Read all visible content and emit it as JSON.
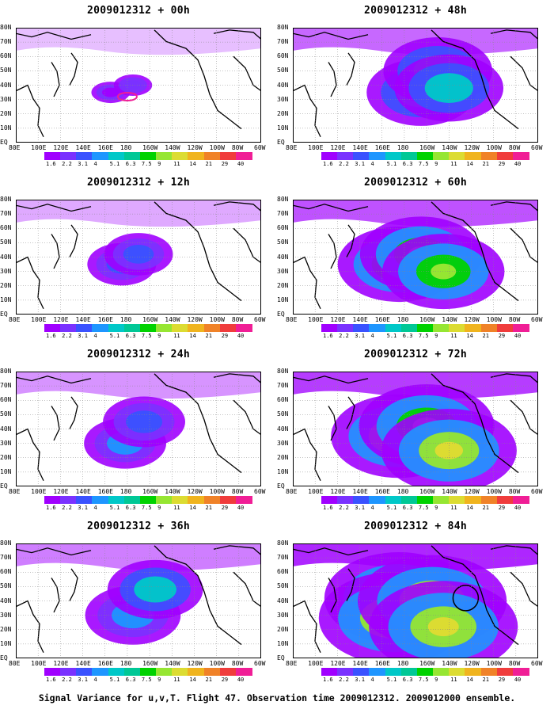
{
  "caption": "Signal Variance for u,v,T. Flight 47. Observation time 2009012312. 2009012000 ensemble.",
  "lat_labels": [
    "80N",
    "70N",
    "60N",
    "50N",
    "40N",
    "30N",
    "20N",
    "10N",
    "EQ"
  ],
  "lon_labels": [
    "80E",
    "100E",
    "120E",
    "140E",
    "160E",
    "180",
    "160W",
    "140W",
    "120W",
    "100W",
    "80W",
    "60W"
  ],
  "colorbar": {
    "levels": [
      "1.6",
      "2.2",
      "3.1",
      "4",
      "5.1",
      "6.3",
      "7.5",
      "9",
      "11",
      "14",
      "21",
      "29",
      "40"
    ],
    "colors": [
      "#a000ff",
      "#7a32ff",
      "#3a52ff",
      "#1e96ff",
      "#00c8c8",
      "#00c896",
      "#00d200",
      "#96e632",
      "#dcdc32",
      "#f0b41e",
      "#f08228",
      "#f03c3c",
      "#f01e96"
    ]
  },
  "chart_data": [
    {
      "type": "heatmap",
      "title": "2009012312 + 00h",
      "forecast_hour": 0,
      "variable": "signal variance",
      "xlim": [
        "80E",
        "60W"
      ],
      "ylim": [
        "EQ",
        "80N"
      ],
      "blobs": [
        {
          "lon": "165E",
          "lat": "35N",
          "level": "1.6-2.2",
          "extent": "small"
        },
        {
          "lon": "175W",
          "lat": "40N",
          "level": "2.2",
          "extent": "small"
        },
        {
          "lon": "180",
          "lat": "32N",
          "level": "29",
          "note": "contour"
        }
      ]
    },
    {
      "type": "heatmap",
      "title": "2009012312 + 12h",
      "forecast_hour": 12,
      "variable": "signal variance",
      "xlim": [
        "80E",
        "60W"
      ],
      "ylim": [
        "EQ",
        "80N"
      ],
      "blobs": [
        {
          "lon": "175E",
          "lat": "35N",
          "level": "3.1-5.1"
        },
        {
          "lon": "170W",
          "lat": "42N",
          "level": "3.1"
        }
      ]
    },
    {
      "type": "heatmap",
      "title": "2009012312 + 24h",
      "forecast_hour": 24,
      "variable": "signal variance",
      "xlim": [
        "80E",
        "60W"
      ],
      "ylim": [
        "EQ",
        "80N"
      ],
      "blobs": [
        {
          "lon": "178E",
          "lat": "30N",
          "level": "4-5.1"
        },
        {
          "lon": "165W",
          "lat": "45N",
          "level": "3.1"
        }
      ]
    },
    {
      "type": "heatmap",
      "title": "2009012312 + 36h",
      "forecast_hour": 36,
      "variable": "signal variance",
      "xlim": [
        "80E",
        "60W"
      ],
      "ylim": [
        "EQ",
        "80N"
      ],
      "blobs": [
        {
          "lon": "175W",
          "lat": "30N",
          "level": "4-5.1"
        },
        {
          "lon": "155W",
          "lat": "48N",
          "level": "5.1"
        }
      ]
    },
    {
      "type": "heatmap",
      "title": "2009012312 + 48h",
      "forecast_hour": 48,
      "variable": "signal variance",
      "xlim": [
        "80E",
        "60W"
      ],
      "ylim": [
        "EQ",
        "80N"
      ],
      "blobs": [
        {
          "lon": "165W",
          "lat": "35N",
          "level": "5.1"
        },
        {
          "lon": "150W",
          "lat": "50N",
          "level": "6.3"
        },
        {
          "lon": "140W",
          "lat": "38N",
          "level": "5.1"
        }
      ]
    },
    {
      "type": "heatmap",
      "title": "2009012312 + 60h",
      "forecast_hour": 60,
      "variable": "signal variance",
      "xlim": [
        "80E",
        "60W"
      ],
      "ylim": [
        "EQ",
        "80N"
      ],
      "blobs": [
        {
          "lon": "175E",
          "lat": "35N",
          "level": "7.5"
        },
        {
          "lon": "165W",
          "lat": "42N",
          "level": "7.5"
        },
        {
          "lon": "145W",
          "lat": "30N",
          "level": "7.5"
        }
      ]
    },
    {
      "type": "heatmap",
      "title": "2009012312 + 72h",
      "forecast_hour": 72,
      "variable": "signal variance",
      "xlim": [
        "80E",
        "60W"
      ],
      "ylim": [
        "EQ",
        "80N"
      ],
      "blobs": [
        {
          "lon": "175E",
          "lat": "35N",
          "level": "9"
        },
        {
          "lon": "160W",
          "lat": "42N",
          "level": "7.5"
        },
        {
          "lon": "140W",
          "lat": "25N",
          "level": "9"
        }
      ]
    },
    {
      "type": "heatmap",
      "title": "2009012312 + 84h",
      "forecast_hour": 84,
      "variable": "signal variance",
      "xlim": [
        "80E",
        "60W"
      ],
      "ylim": [
        "EQ",
        "80N"
      ],
      "blobs": [
        {
          "lon": "175E",
          "lat": "42N",
          "level": "9"
        },
        {
          "lon": "170E",
          "lat": "28N",
          "level": "9"
        },
        {
          "lon": "155W",
          "lat": "40N",
          "level": "9"
        },
        {
          "lon": "145W",
          "lat": "22N",
          "level": "9"
        }
      ],
      "annotation": "circle near 125W 42N"
    }
  ]
}
